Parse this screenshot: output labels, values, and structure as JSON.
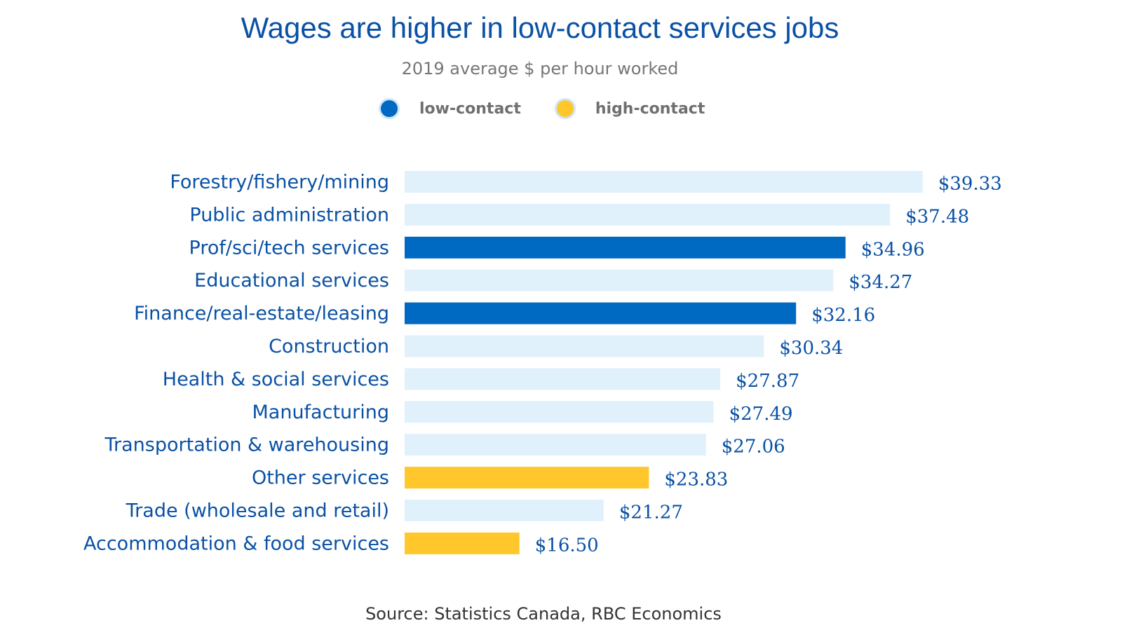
{
  "chart_data": {
    "type": "bar",
    "orientation": "horizontal",
    "title": "Wages are higher in low-contact services jobs",
    "subtitle": "2019 average $ per hour worked",
    "xlabel": "",
    "ylabel": "",
    "xlim": [
      10,
      40
    ],
    "grid": false,
    "legend_placement": "top-center",
    "legend": [
      {
        "key": "low",
        "label": "low-contact",
        "color": "#0069c2"
      },
      {
        "key": "high",
        "label": "high-contact",
        "color": "#ffc72c"
      }
    ],
    "default_color": "#e1f1fc",
    "categories": [
      "Forestry/fishery/mining",
      "Public administration",
      "Prof/sci/tech services",
      "Educational services",
      "Finance/real-estate/leasing",
      "Construction",
      "Health & social services",
      "Manufacturing",
      "Transportation & warehousing",
      "Other services",
      "Trade (wholesale and retail)",
      "Accommodation & food services"
    ],
    "values": [
      39.33,
      37.48,
      34.96,
      34.27,
      32.16,
      30.34,
      27.87,
      27.49,
      27.06,
      23.83,
      21.27,
      16.5
    ],
    "value_labels": [
      "$39.33",
      "$37.48",
      "$34.96",
      "$34.27",
      "$32.16",
      "$30.34",
      "$27.87",
      "$27.49",
      "$27.06",
      "$23.83",
      "$21.27",
      "$16.50"
    ],
    "highlight": [
      null,
      null,
      "low",
      null,
      "low",
      null,
      null,
      null,
      null,
      "high",
      null,
      "high"
    ],
    "source": "Source: Statistics Canada, RBC Economics"
  }
}
